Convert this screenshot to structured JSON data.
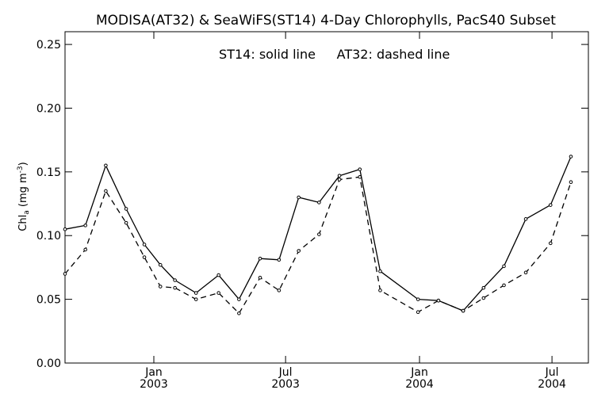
{
  "chart_data": {
    "type": "line",
    "title": "MODISA(AT32) & SeaWiFS(ST14) 4-Day Chlorophylls, PacS40 Subset",
    "annotation": {
      "solid": "ST14: solid line",
      "dashed": "AT32: dashed line"
    },
    "ylabel": "Chl",
    "ylabel_sub": "a",
    "ylabel_unit_prefix": " (mg m",
    "ylabel_unit_exp": "-3",
    "ylabel_unit_suffix": ")",
    "ylim": [
      0.0,
      0.26
    ],
    "y_ticks": [
      "0.00",
      "0.05",
      "0.10",
      "0.15",
      "0.20",
      "0.25"
    ],
    "x_range": [
      "2002-09-01",
      "2004-08-20"
    ],
    "x_ticks": [
      {
        "date": "2003-01-01",
        "label1": "Jan",
        "label2": "2003"
      },
      {
        "date": "2003-07-01",
        "label1": "Jul",
        "label2": "2003"
      },
      {
        "date": "2004-01-01",
        "label1": "Jan",
        "label2": "2004"
      },
      {
        "date": "2004-07-01",
        "label1": "Jul",
        "label2": "2004"
      }
    ],
    "series": [
      {
        "name": "ST14",
        "style": "solid",
        "color": "#000000",
        "points": [
          [
            "2002-09-01",
            0.105
          ],
          [
            "2002-09-29",
            0.108
          ],
          [
            "2002-10-27",
            0.155
          ],
          [
            "2002-11-24",
            0.121
          ],
          [
            "2002-12-19",
            0.093
          ],
          [
            "2003-01-10",
            0.077
          ],
          [
            "2003-01-30",
            0.065
          ],
          [
            "2003-02-28",
            0.055
          ],
          [
            "2003-03-31",
            0.069
          ],
          [
            "2003-04-28",
            0.05
          ],
          [
            "2003-05-27",
            0.082
          ],
          [
            "2003-06-22",
            0.081
          ],
          [
            "2003-07-19",
            0.13
          ],
          [
            "2003-08-16",
            0.126
          ],
          [
            "2003-09-13",
            0.147
          ],
          [
            "2003-10-11",
            0.152
          ],
          [
            "2003-11-08",
            0.072
          ],
          [
            "2003-12-30",
            0.05
          ],
          [
            "2004-01-27",
            0.049
          ],
          [
            "2004-03-01",
            0.041
          ],
          [
            "2004-03-29",
            0.059
          ],
          [
            "2004-04-26",
            0.076
          ],
          [
            "2004-05-26",
            0.113
          ],
          [
            "2004-06-29",
            0.124
          ],
          [
            "2004-07-27",
            0.162
          ]
        ]
      },
      {
        "name": "AT32",
        "style": "dashed",
        "color": "#000000",
        "points": [
          [
            "2002-09-01",
            0.07
          ],
          [
            "2002-09-29",
            0.089
          ],
          [
            "2002-10-27",
            0.135
          ],
          [
            "2002-11-24",
            0.11
          ],
          [
            "2002-12-19",
            0.083
          ],
          [
            "2003-01-10",
            0.06
          ],
          [
            "2003-01-30",
            0.059
          ],
          [
            "2003-02-28",
            0.05
          ],
          [
            "2003-03-31",
            0.055
          ],
          [
            "2003-04-28",
            0.039
          ],
          [
            "2003-05-27",
            0.067
          ],
          [
            "2003-06-22",
            0.057
          ],
          [
            "2003-07-19",
            0.088
          ],
          [
            "2003-08-16",
            0.101
          ],
          [
            "2003-09-13",
            0.144
          ],
          [
            "2003-10-11",
            0.146
          ],
          [
            "2003-11-08",
            0.057
          ],
          [
            "2003-12-30",
            0.04
          ],
          [
            "2004-01-27",
            0.049
          ],
          [
            "2004-03-01",
            0.041
          ],
          [
            "2004-03-29",
            0.051
          ],
          [
            "2004-04-26",
            0.061
          ],
          [
            "2004-05-26",
            0.071
          ],
          [
            "2004-06-29",
            0.094
          ],
          [
            "2004-07-27",
            0.142
          ]
        ]
      }
    ],
    "grid": false,
    "legend": "top-center"
  }
}
